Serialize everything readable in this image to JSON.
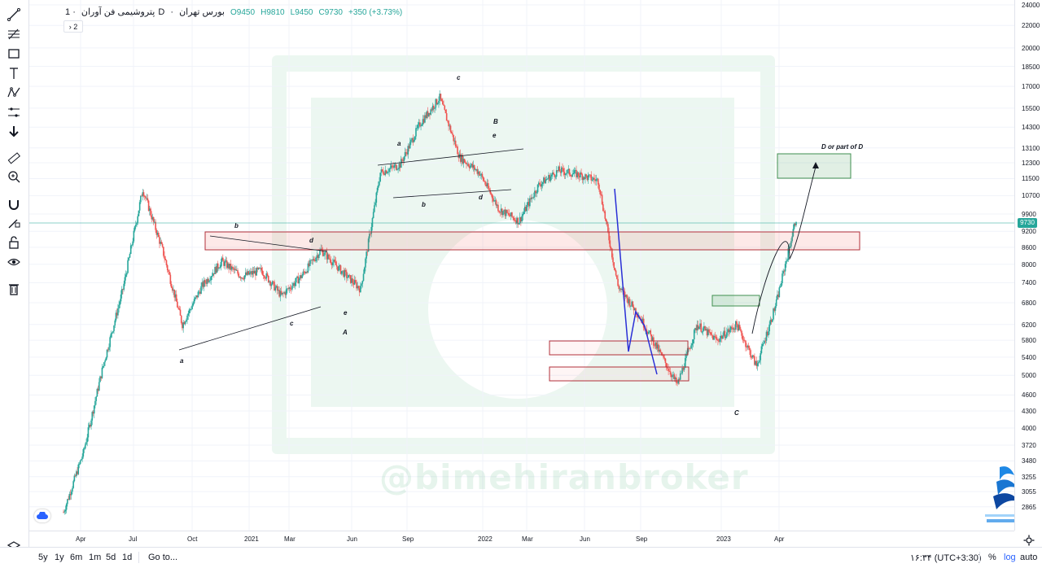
{
  "legend": {
    "symbol": "پتروشیمی فن آوران",
    "interval": "1D",
    "exchange": "بورس تهران",
    "open": "O9450",
    "high": "H9810",
    "low": "L9450",
    "close": "C9730",
    "change": "+350 (+3.73%)",
    "collapse_count": "2"
  },
  "colors": {
    "up": "#26a69a",
    "down": "#ef5350",
    "accent": "#2962ff",
    "zone_red": "#c2404a",
    "zone_green": "#5aa86a",
    "watermark": "#3caa6e"
  },
  "watermark": "@bimehiranbroker",
  "last_price": "9730",
  "price_axis": [
    "24000",
    "22000",
    "20000",
    "18500",
    "17000",
    "15500",
    "14300",
    "13100",
    "12300",
    "11500",
    "10700",
    "9900",
    "9200",
    "8600",
    "8000",
    "7400",
    "6800",
    "6200",
    "5800",
    "5400",
    "5000",
    "4600",
    "4300",
    "4000",
    "3720",
    "3480",
    "3255",
    "3055",
    "2865"
  ],
  "time_axis": [
    "Apr",
    "Jul",
    "Oct",
    "2021",
    "Mar",
    "Jun",
    "Sep",
    "2022",
    "Mar",
    "Jun",
    "Sep",
    "2023",
    "Apr"
  ],
  "chart_data": {
    "type": "candlestick",
    "scale": "log",
    "ylim": [
      2700,
      24000
    ],
    "x": [
      "2020-03",
      "2020-04",
      "2020-05",
      "2020-06",
      "2020-07",
      "2020-08",
      "2020-09",
      "2020-10",
      "2020-11",
      "2020-12",
      "2021-01",
      "2021-02",
      "2021-03",
      "2021-04",
      "2021-05",
      "2021-06",
      "2021-07",
      "2021-08",
      "2021-09",
      "2021-10",
      "2021-11",
      "2021-12",
      "2022-01",
      "2022-02",
      "2022-03",
      "2022-04",
      "2022-05",
      "2022-06",
      "2022-07",
      "2022-08",
      "2022-09",
      "2022-10",
      "2022-11",
      "2022-12",
      "2023-01",
      "2023-02",
      "2023-03",
      "2023-04"
    ],
    "close": [
      2800,
      3600,
      5200,
      7200,
      11000,
      8500,
      6200,
      7300,
      8100,
      7600,
      7800,
      7000,
      7600,
      8500,
      7800,
      7200,
      11800,
      12200,
      14500,
      16200,
      12600,
      11800,
      10100,
      9600,
      11200,
      11900,
      11700,
      11400,
      7300,
      6500,
      5600,
      4800,
      6200,
      5800,
      6200,
      5200,
      6800,
      9730
    ],
    "high": [
      2900,
      3900,
      5600,
      7800,
      11500,
      9200,
      7000,
      8000,
      9200,
      8400,
      8500,
      7800,
      8400,
      8800,
      8600,
      8200,
      12400,
      13100,
      15000,
      16500,
      13200,
      12200,
      10800,
      10100,
      11800,
      12400,
      12100,
      11800,
      11300,
      6900,
      6000,
      5900,
      6500,
      6400,
      6600,
      5800,
      7400,
      9810
    ],
    "low": [
      2700,
      2900,
      3500,
      5100,
      7000,
      6800,
      5800,
      6000,
      7000,
      6800,
      7200,
      6500,
      6900,
      7300,
      7200,
      6900,
      8800,
      11000,
      11500,
      13200,
      11200,
      10600,
      9800,
      9400,
      9600,
      11000,
      11100,
      10900,
      5800,
      5900,
      5400,
      4600,
      4900,
      5100,
      5300,
      5000,
      5200,
      6600
    ],
    "waves": [
      "a",
      "b",
      "c",
      "d",
      "e",
      "A",
      "a",
      "b",
      "c",
      "d",
      "e",
      "B",
      "C",
      "D or part of D"
    ],
    "annotations": [
      "D or part of D"
    ]
  },
  "toolbar": [
    "trend-line",
    "fib-tools",
    "shapes",
    "text",
    "patterns",
    "prediction",
    "cursor",
    "ruler",
    "zoom",
    "magnet",
    "lock-drawing",
    "lock",
    "visibility",
    "trash"
  ],
  "bottom_bar": {
    "ranges": [
      "5y",
      "1y",
      "6m",
      "1m",
      "5d",
      "1d"
    ],
    "goto": "Go to...",
    "time": "۱۶:۳۴ (UTC+3:30)",
    "percent": "%",
    "log": "log",
    "auto": "auto"
  }
}
